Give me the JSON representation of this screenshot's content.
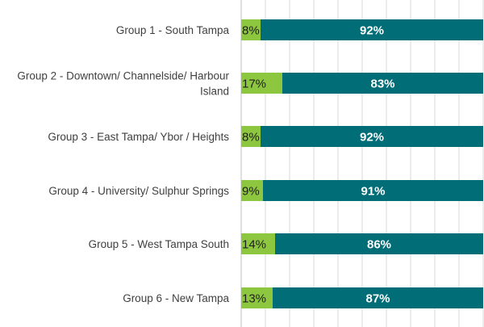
{
  "chart_data": {
    "type": "bar",
    "orientation": "horizontal",
    "stacked": true,
    "percent": true,
    "categories": [
      [
        "Group 1 - South Tampa"
      ],
      [
        "Group 2 - Downtown/ Channelside/ Harbour",
        "Island"
      ],
      [
        "Group 3 - East Tampa/ Ybor / Heights"
      ],
      [
        "Group 4 - University/ Sulphur Springs"
      ],
      [
        "Group 5 - West Tampa South"
      ],
      [
        "Group 6 - New Tampa"
      ]
    ],
    "series": [
      {
        "values": [
          8,
          17,
          8,
          9,
          14,
          13
        ],
        "labels": [
          "8%",
          "17%",
          "8%",
          "9%",
          "14%",
          "13%"
        ],
        "color": "#8dc63f"
      },
      {
        "values": [
          92,
          83,
          92,
          91,
          86,
          87
        ],
        "labels": [
          "92%",
          "83%",
          "92%",
          "91%",
          "86%",
          "87%"
        ],
        "color": "#006d77"
      }
    ],
    "xlim": [
      0,
      100
    ],
    "grid": true,
    "legend": "none"
  }
}
